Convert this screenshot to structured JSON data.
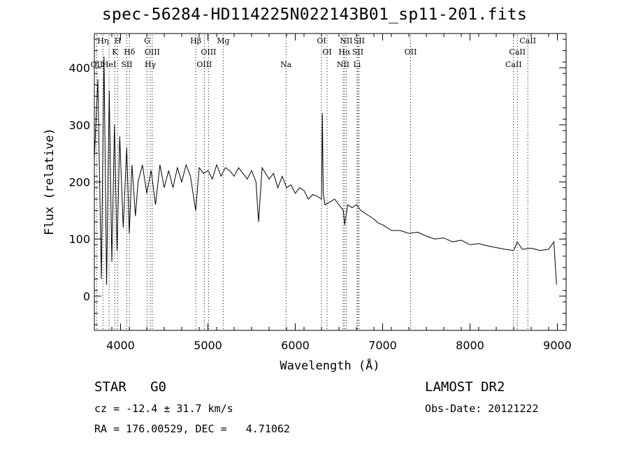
{
  "title": "spec-56284-HD114225N022143B01_sp11-201.fits",
  "footer": {
    "class_text": "STAR   G0",
    "survey": "LAMOST DR2",
    "cz": "cz = -12.4 ± 31.7 km/s",
    "obs_date": "Obs-Date: 20121222",
    "coords": "RA = 176.00529, DEC =   4.71062"
  },
  "chart_data": {
    "type": "line",
    "title": "spec-56284-HD114225N022143B01_sp11-201.fits",
    "xlabel": "Wavelength (Å)",
    "ylabel": "Flux (relative)",
    "xlim": [
      3700,
      9100
    ],
    "ylim": [
      -60,
      460
    ],
    "x_ticks": [
      4000,
      5000,
      6000,
      7000,
      8000,
      9000
    ],
    "y_ticks": [
      0,
      100,
      200,
      300,
      400
    ],
    "grid": false,
    "line_color": "#000000",
    "marker_color": "#000000",
    "series": [
      {
        "x": [
          3700,
          3740,
          3780,
          3810,
          3840,
          3870,
          3900,
          3930,
          3960,
          3990,
          4030,
          4070,
          4100,
          4130,
          4170,
          4200,
          4250,
          4300,
          4350,
          4400,
          4450,
          4500,
          4550,
          4600,
          4650,
          4700,
          4750,
          4800,
          4860,
          4900,
          4950,
          5000,
          5050,
          5100,
          5150,
          5200,
          5250,
          5300,
          5350,
          5400,
          5450,
          5500,
          5550,
          5580,
          5620,
          5700,
          5750,
          5800,
          5850,
          5900,
          5950,
          6000,
          6050,
          6100,
          6150,
          6200,
          6250,
          6300,
          6310,
          6320,
          6340,
          6400,
          6450,
          6500,
          6550,
          6565,
          6600,
          6650,
          6700,
          6750,
          6800,
          6850,
          6900,
          6950,
          7000,
          7100,
          7200,
          7300,
          7400,
          7500,
          7600,
          7700,
          7800,
          7900,
          8000,
          8100,
          8200,
          8300,
          8400,
          8500,
          8540,
          8600,
          8700,
          8800,
          8900,
          8960,
          8990
        ],
        "y": [
          240,
          380,
          30,
          420,
          20,
          360,
          60,
          300,
          80,
          280,
          120,
          260,
          110,
          230,
          140,
          200,
          230,
          180,
          220,
          160,
          230,
          190,
          220,
          190,
          225,
          200,
          230,
          210,
          150,
          225,
          215,
          220,
          205,
          230,
          210,
          225,
          220,
          210,
          225,
          215,
          205,
          220,
          200,
          130,
          225,
          205,
          215,
          190,
          210,
          190,
          195,
          180,
          190,
          185,
          170,
          178,
          175,
          170,
          320,
          180,
          160,
          165,
          170,
          160,
          150,
          125,
          160,
          155,
          160,
          150,
          145,
          140,
          135,
          128,
          125,
          115,
          115,
          110,
          112,
          105,
          100,
          102,
          95,
          98,
          90,
          92,
          88,
          85,
          82,
          80,
          95,
          82,
          84,
          80,
          82,
          95,
          20
        ]
      }
    ],
    "lines": [
      {
        "wl": 3727,
        "label": "OII",
        "row": 3
      },
      {
        "wl": 3798,
        "label": "Hη",
        "row": 1
      },
      {
        "wl": 3869,
        "label": "HeI",
        "row": 3
      },
      {
        "wl": 3934,
        "label": "K",
        "row": 2
      },
      {
        "wl": 3968,
        "label": "H",
        "row": 1
      },
      {
        "wl": 4072,
        "label": "SII",
        "row": 3
      },
      {
        "wl": 4102,
        "label": "Hδ",
        "row": 2
      },
      {
        "wl": 4304,
        "label": "G",
        "row": 1
      },
      {
        "wl": 4340,
        "label": "Hγ",
        "row": 3
      },
      {
        "wl": 4363,
        "label": "OIII",
        "row": 2
      },
      {
        "wl": 4861,
        "label": "Hβ",
        "row": 1
      },
      {
        "wl": 4959,
        "label": "OIII",
        "row": 3
      },
      {
        "wl": 5007,
        "label": "OIII",
        "row": 2
      },
      {
        "wl": 5175,
        "label": "Mg",
        "row": 1
      },
      {
        "wl": 5894,
        "label": "Na",
        "row": 3
      },
      {
        "wl": 6300,
        "label": "OI",
        "row": 1
      },
      {
        "wl": 6364,
        "label": "OI",
        "row": 2
      },
      {
        "wl": 6548,
        "label": "NII",
        "row": 3
      },
      {
        "wl": 6563,
        "label": "Hα",
        "row": 2
      },
      {
        "wl": 6583,
        "label": "NII",
        "row": 1
      },
      {
        "wl": 6707,
        "label": "Li",
        "row": 3
      },
      {
        "wl": 6716,
        "label": "SII",
        "row": 2
      },
      {
        "wl": 6731,
        "label": "SII",
        "row": 1
      },
      {
        "wl": 7320,
        "label": "OII",
        "row": 2
      },
      {
        "wl": 8498,
        "label": "CaII",
        "row": 3
      },
      {
        "wl": 8542,
        "label": "CaII",
        "row": 2
      },
      {
        "wl": 8662,
        "label": "CaII",
        "row": 1
      }
    ]
  }
}
